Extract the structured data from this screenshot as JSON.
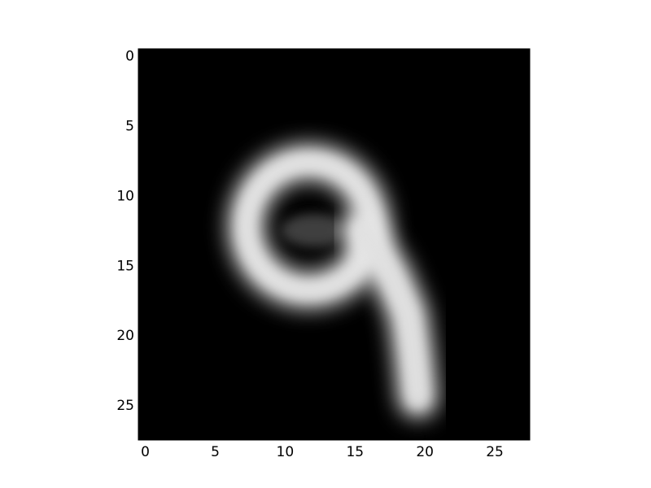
{
  "chart_data": {
    "type": "heatmap",
    "title": "",
    "xlabel": "",
    "ylabel": "",
    "colormap": "gray",
    "image_size": [
      28,
      28
    ],
    "xlim": [
      -0.5,
      27.5
    ],
    "ylim": [
      27.5,
      -0.5
    ],
    "x_ticks": [
      {
        "value": 0,
        "label": "0"
      },
      {
        "value": 5,
        "label": "5"
      },
      {
        "value": 10,
        "label": "10"
      },
      {
        "value": 15,
        "label": "15"
      },
      {
        "value": 20,
        "label": "20"
      },
      {
        "value": 25,
        "label": "25"
      }
    ],
    "y_ticks": [
      {
        "value": 0,
        "label": "0"
      },
      {
        "value": 5,
        "label": "5"
      },
      {
        "value": 10,
        "label": "10"
      },
      {
        "value": 15,
        "label": "15"
      },
      {
        "value": 20,
        "label": "20"
      },
      {
        "value": 25,
        "label": "25"
      }
    ],
    "strokes": [
      {
        "kind": "ring",
        "cx": 11.7,
        "cy": 12.2,
        "rx": 4.5,
        "ry": 4.6,
        "intensity": 0.85
      },
      {
        "kind": "path",
        "points": [
          [
            15.5,
            12.5
          ],
          [
            17.5,
            15.5
          ],
          [
            18.8,
            18.5
          ],
          [
            19.2,
            21.5
          ],
          [
            19.5,
            24.5
          ]
        ],
        "intensity": 0.9
      }
    ]
  }
}
